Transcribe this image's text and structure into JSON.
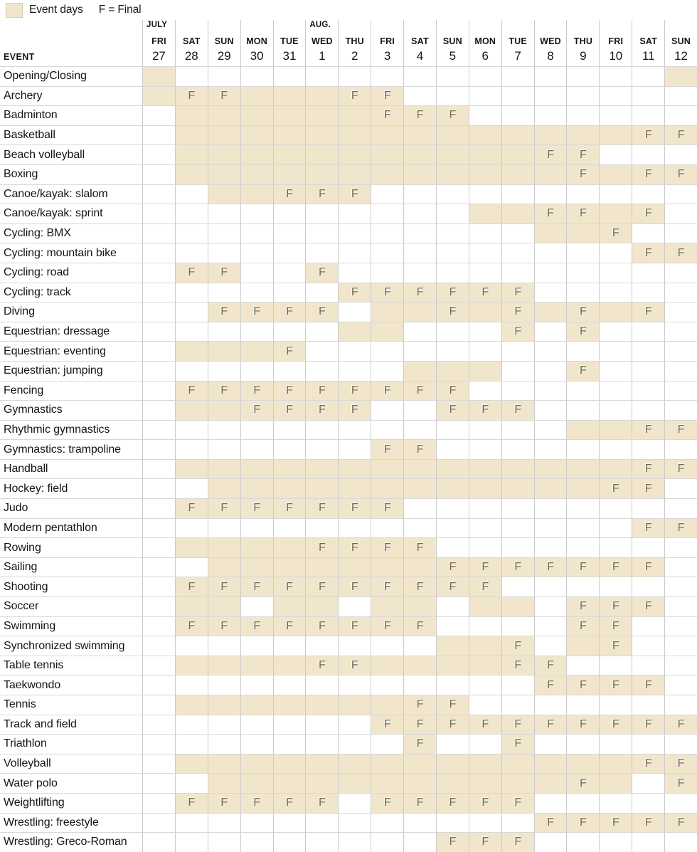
{
  "legend": {
    "swatch_label": "Event days",
    "final_label": "F = Final"
  },
  "table": {
    "event_header": "EVENT",
    "final_mark": "F",
    "columns": [
      {
        "month": "JULY",
        "dow": "FRI",
        "day": "27"
      },
      {
        "dow": "SAT",
        "day": "28"
      },
      {
        "dow": "SUN",
        "day": "29"
      },
      {
        "dow": "MON",
        "day": "30"
      },
      {
        "dow": "TUE",
        "day": "31"
      },
      {
        "month": "AUG.",
        "dow": "WED",
        "day": "1"
      },
      {
        "dow": "THU",
        "day": "2"
      },
      {
        "dow": "FRI",
        "day": "3"
      },
      {
        "dow": "SAT",
        "day": "4"
      },
      {
        "dow": "SUN",
        "day": "5"
      },
      {
        "dow": "MON",
        "day": "6"
      },
      {
        "dow": "TUE",
        "day": "7"
      },
      {
        "dow": "WED",
        "day": "8"
      },
      {
        "dow": "THU",
        "day": "9"
      },
      {
        "dow": "FRI",
        "day": "10"
      },
      {
        "dow": "SAT",
        "day": "11"
      },
      {
        "dow": "SUN",
        "day": "12"
      }
    ],
    "cell_legend": {
      ".": "no event",
      "e": "event day",
      "f": "event day with final"
    },
    "rows": [
      {
        "label": "Opening/Closing",
        "cells": "e...............e"
      },
      {
        "label": "Archery",
        "cells": "effeeeff........."
      },
      {
        "label": "Badminton",
        "cells": ".eeeeeefff......."
      },
      {
        "label": "Basketball",
        "cells": ".eeeeeeeeeeeeeeff"
      },
      {
        "label": "Beach volleyball",
        "cells": ".eeeeeeeeeeeff..."
      },
      {
        "label": "Boxing",
        "cells": ".eeeeeeeeeeeefeff"
      },
      {
        "label": "Canoe/kayak: slalom",
        "cells": "..eefff.........."
      },
      {
        "label": "Canoe/kayak: sprint",
        "cells": "..........eeffef."
      },
      {
        "label": "Cycling: BMX",
        "cells": "............eef.."
      },
      {
        "label": "Cycling: mountain bike",
        "cells": "...............ff"
      },
      {
        "label": "Cycling: road",
        "cells": ".ff..f..........."
      },
      {
        "label": "Cycling: track",
        "cells": "......ffffff....."
      },
      {
        "label": "Diving",
        "cells": "..ffff.eefefefef."
      },
      {
        "label": "Equestrian: dressage",
        "cells": "......ee...f.f..."
      },
      {
        "label": "Equestrian: eventing",
        "cells": ".eeef............"
      },
      {
        "label": "Equestrian: jumping",
        "cells": "........eee..f..."
      },
      {
        "label": "Fencing",
        "cells": ".fffffffff......."
      },
      {
        "label": "Gymnastics",
        "cells": ".eeffff..fff....."
      },
      {
        "label": "Rhythmic gymnastics",
        "cells": ".............eeff"
      },
      {
        "label": "Gymnastics: trampoline",
        "cells": ".......ff........"
      },
      {
        "label": "Handball",
        "cells": ".eeeeeeeeeeeeeeff"
      },
      {
        "label": "Hockey: field",
        "cells": "..eeeeeeeeeeeeff."
      },
      {
        "label": "Judo",
        "cells": ".fffffff........."
      },
      {
        "label": "Modern pentathlon",
        "cells": "...............ff"
      },
      {
        "label": "Rowing",
        "cells": ".eeeeffff........"
      },
      {
        "label": "Sailing",
        "cells": "..eeeeeeefffffff."
      },
      {
        "label": "Shooting",
        "cells": ".ffffffffff......"
      },
      {
        "label": "Soccer",
        "cells": ".ee.ee.ee.ee.fff."
      },
      {
        "label": "Swimming",
        "cells": ".ffffffff....ff.."
      },
      {
        "label": "Synchronized swimming",
        "cells": ".........eef.ef.."
      },
      {
        "label": "Table tennis",
        "cells": ".eeeeffeeeeff...."
      },
      {
        "label": "Taekwondo",
        "cells": "............ffff."
      },
      {
        "label": "Tennis",
        "cells": ".eeeeeeeff......."
      },
      {
        "label": "Track and field",
        "cells": ".......ffffffffff"
      },
      {
        "label": "Triathlon",
        "cells": "........f..f....."
      },
      {
        "label": "Volleyball",
        "cells": ".eeeeeeeeeeeeeeff"
      },
      {
        "label": "Water polo",
        "cells": "..eeeeeeeeeeefe.f"
      },
      {
        "label": "Weightlifting",
        "cells": ".fffff.fffff....."
      },
      {
        "label": "Wrestling: freestyle",
        "cells": "............fffff"
      },
      {
        "label": "Wrestling: Greco-Roman",
        "cells": ".........fff....."
      }
    ]
  },
  "colors": {
    "event_day": "#f1e6cb",
    "grid_vertical_line": "#cbcbcb",
    "grid_horizontal_line": "#d8d8d8",
    "final_letter": "#6f6a5c",
    "text": "#151515"
  }
}
